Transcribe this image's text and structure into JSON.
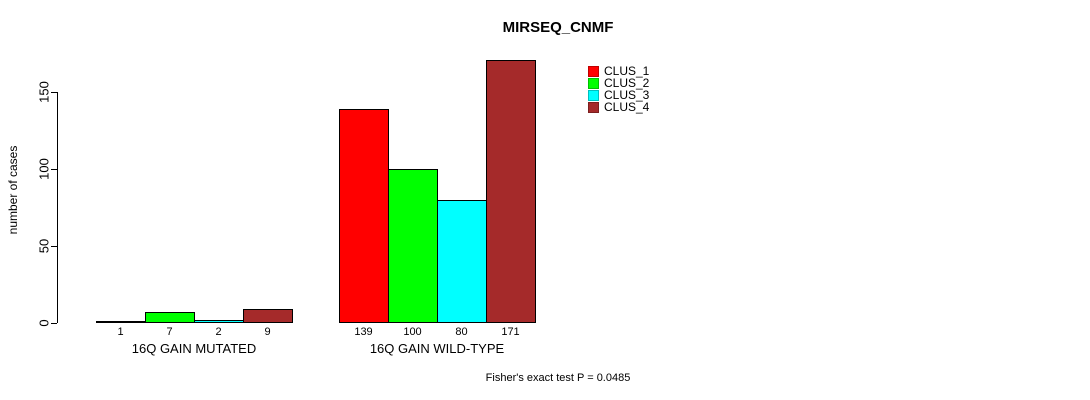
{
  "chart_data": {
    "type": "bar",
    "title": "MIRSEQ_CNMF",
    "ylabel": "number of cases",
    "xlabel": "",
    "yticks": [
      0,
      50,
      100,
      150
    ],
    "ylim": [
      0,
      171
    ],
    "grid": false,
    "legend_position": "top-right-inside",
    "categories": [
      "16Q GAIN MUTATED",
      "16Q GAIN WILD-TYPE"
    ],
    "series": [
      {
        "name": "CLUS_1",
        "color": "#ff0000",
        "values": [
          1,
          139
        ]
      },
      {
        "name": "CLUS_2",
        "color": "#00ff00",
        "values": [
          7,
          100
        ]
      },
      {
        "name": "CLUS_3",
        "color": "#00ffff",
        "values": [
          2,
          80
        ]
      },
      {
        "name": "CLUS_4",
        "color": "#a52a2a",
        "values": [
          9,
          171
        ]
      }
    ],
    "footnote": "Fisher's exact test P = 0.0485"
  },
  "colors": {
    "background": "#ffffff",
    "axis": "#000000",
    "text": "#000000"
  }
}
